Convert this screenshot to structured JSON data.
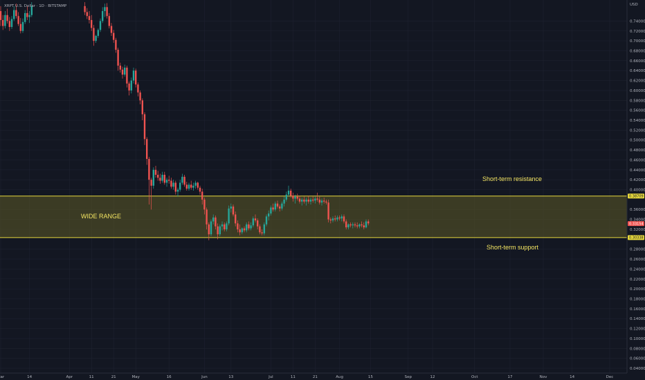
{
  "header": {
    "symbol": "XRPT U.S. Dollar · 1D · BITSTAMP",
    "currency": "USD"
  },
  "colors": {
    "background": "#131722",
    "grid": "#1e2230",
    "up": "#26a69a",
    "down": "#ef5350",
    "range_fill": "#5d5a26",
    "range_border": "#e8d93c",
    "annotation": "#f5e663"
  },
  "chart_data": {
    "type": "candlestick",
    "ylabel": "USD",
    "ylim": [
      0.03,
      0.76
    ],
    "yticks": [
      "0.74000",
      "0.72000",
      "0.70000",
      "0.68000",
      "0.66000",
      "0.64000",
      "0.62000",
      "0.60000",
      "0.58000",
      "0.56000",
      "0.54000",
      "0.52000",
      "0.50000",
      "0.48000",
      "0.46000",
      "0.44000",
      "0.42000",
      "0.40000",
      "0.36000",
      "0.34000",
      "0.32000",
      "0.28000",
      "0.26000",
      "0.24000",
      "0.22000",
      "0.20000",
      "0.18000",
      "0.16000",
      "0.14000",
      "0.12000",
      "0.10000",
      "0.08000",
      "0.06000",
      "0.04000"
    ],
    "xticks": [
      {
        "label": "Mar",
        "day": 0
      },
      {
        "label": "14",
        "day": 13
      },
      {
        "label": "Apr",
        "day": 31
      },
      {
        "label": "11",
        "day": 41
      },
      {
        "label": "21",
        "day": 51
      },
      {
        "label": "May",
        "day": 61
      },
      {
        "label": "16",
        "day": 76
      },
      {
        "label": "Jun",
        "day": 92
      },
      {
        "label": "13",
        "day": 104
      },
      {
        "label": "Jul",
        "day": 122
      },
      {
        "label": "11",
        "day": 132
      },
      {
        "label": "21",
        "day": 142
      },
      {
        "label": "Aug",
        "day": 153
      },
      {
        "label": "15",
        "day": 167
      },
      {
        "label": "Sep",
        "day": 184
      },
      {
        "label": "12",
        "day": 195
      },
      {
        "label": "Oct",
        "day": 214
      },
      {
        "label": "17",
        "day": 230
      },
      {
        "label": "Nov",
        "day": 245
      },
      {
        "label": "14",
        "day": 258
      },
      {
        "label": "Dec",
        "day": 275
      }
    ],
    "price_tags": {
      "resistance": "0.38709",
      "current": "0.33154",
      "support": "0.30338"
    },
    "range": {
      "top": 0.38709,
      "bottom": 0.30338
    },
    "annotations": {
      "range_label": "WIDE RANGE",
      "resistance_label": "Short-term resistance",
      "support_label": "Short-term support"
    },
    "candles": [
      [
        0,
        0.76,
        0.77,
        0.73,
        0.742
      ],
      [
        1,
        0.742,
        0.752,
        0.722,
        0.73
      ],
      [
        2,
        0.73,
        0.76,
        0.725,
        0.752
      ],
      [
        3,
        0.752,
        0.765,
        0.735,
        0.74
      ],
      [
        4,
        0.74,
        0.748,
        0.72,
        0.728
      ],
      [
        5,
        0.728,
        0.75,
        0.724,
        0.744
      ],
      [
        6,
        0.744,
        0.77,
        0.74,
        0.762
      ],
      [
        7,
        0.762,
        0.775,
        0.745,
        0.75
      ],
      [
        8,
        0.75,
        0.758,
        0.73,
        0.734
      ],
      [
        9,
        0.734,
        0.746,
        0.715,
        0.72
      ],
      [
        10,
        0.72,
        0.745,
        0.716,
        0.738
      ],
      [
        11,
        0.738,
        0.762,
        0.734,
        0.756
      ],
      [
        12,
        0.756,
        0.77,
        0.742,
        0.748
      ],
      [
        13,
        0.748,
        0.76,
        0.736,
        0.752
      ],
      [
        14,
        0.752,
        0.778,
        0.748,
        0.77
      ],
      [
        38,
        0.77,
        0.778,
        0.752,
        0.758
      ],
      [
        39,
        0.758,
        0.766,
        0.744,
        0.75
      ],
      [
        40,
        0.75,
        0.76,
        0.735,
        0.742
      ],
      [
        41,
        0.742,
        0.752,
        0.72,
        0.726
      ],
      [
        42,
        0.726,
        0.732,
        0.69,
        0.7
      ],
      [
        43,
        0.7,
        0.712,
        0.696,
        0.71
      ],
      [
        44,
        0.71,
        0.725,
        0.706,
        0.722
      ],
      [
        45,
        0.722,
        0.745,
        0.718,
        0.74
      ],
      [
        46,
        0.74,
        0.768,
        0.736,
        0.76
      ],
      [
        47,
        0.76,
        0.775,
        0.748,
        0.768
      ],
      [
        48,
        0.768,
        0.776,
        0.745,
        0.75
      ],
      [
        49,
        0.75,
        0.756,
        0.725,
        0.73
      ],
      [
        50,
        0.73,
        0.736,
        0.71,
        0.716
      ],
      [
        51,
        0.716,
        0.722,
        0.696,
        0.702
      ],
      [
        52,
        0.702,
        0.706,
        0.676,
        0.682
      ],
      [
        53,
        0.682,
        0.686,
        0.64,
        0.65
      ],
      [
        54,
        0.65,
        0.656,
        0.636,
        0.642
      ],
      [
        55,
        0.642,
        0.648,
        0.624,
        0.632
      ],
      [
        56,
        0.632,
        0.652,
        0.628,
        0.646
      ],
      [
        57,
        0.646,
        0.65,
        0.606,
        0.614
      ],
      [
        58,
        0.614,
        0.618,
        0.59,
        0.6
      ],
      [
        59,
        0.6,
        0.626,
        0.594,
        0.62
      ],
      [
        60,
        0.62,
        0.646,
        0.614,
        0.64
      ],
      [
        61,
        0.64,
        0.644,
        0.606,
        0.612
      ],
      [
        62,
        0.612,
        0.616,
        0.588,
        0.596
      ],
      [
        63,
        0.596,
        0.6,
        0.572,
        0.58
      ],
      [
        64,
        0.58,
        0.584,
        0.54,
        0.552
      ],
      [
        65,
        0.552,
        0.556,
        0.49,
        0.502
      ],
      [
        66,
        0.502,
        0.506,
        0.45,
        0.462
      ],
      [
        67,
        0.462,
        0.466,
        0.37,
        0.42
      ],
      [
        68,
        0.42,
        0.424,
        0.36,
        0.408
      ],
      [
        69,
        0.408,
        0.445,
        0.402,
        0.44
      ],
      [
        70,
        0.44,
        0.448,
        0.424,
        0.43
      ],
      [
        71,
        0.43,
        0.438,
        0.418,
        0.424
      ],
      [
        72,
        0.424,
        0.432,
        0.412,
        0.418
      ],
      [
        73,
        0.418,
        0.436,
        0.414,
        0.43
      ],
      [
        74,
        0.43,
        0.436,
        0.41,
        0.414
      ],
      [
        75,
        0.414,
        0.424,
        0.406,
        0.42
      ],
      [
        76,
        0.42,
        0.428,
        0.412,
        0.418
      ],
      [
        77,
        0.418,
        0.424,
        0.402,
        0.406
      ],
      [
        78,
        0.406,
        0.42,
        0.4,
        0.414
      ],
      [
        79,
        0.414,
        0.418,
        0.39,
        0.396
      ],
      [
        80,
        0.396,
        0.404,
        0.386,
        0.4
      ],
      [
        81,
        0.4,
        0.42,
        0.396,
        0.414
      ],
      [
        82,
        0.414,
        0.432,
        0.41,
        0.426
      ],
      [
        83,
        0.426,
        0.43,
        0.406,
        0.41
      ],
      [
        84,
        0.41,
        0.416,
        0.398,
        0.402
      ],
      [
        85,
        0.402,
        0.414,
        0.398,
        0.41
      ],
      [
        86,
        0.41,
        0.418,
        0.4,
        0.404
      ],
      [
        87,
        0.404,
        0.414,
        0.398,
        0.408
      ],
      [
        88,
        0.408,
        0.418,
        0.402,
        0.414
      ],
      [
        89,
        0.414,
        0.416,
        0.4,
        0.404
      ],
      [
        90,
        0.404,
        0.408,
        0.39,
        0.396
      ],
      [
        91,
        0.396,
        0.402,
        0.37,
        0.38
      ],
      [
        92,
        0.38,
        0.384,
        0.35,
        0.36
      ],
      [
        93,
        0.36,
        0.364,
        0.32,
        0.33
      ],
      [
        94,
        0.33,
        0.334,
        0.298,
        0.31
      ],
      [
        95,
        0.31,
        0.34,
        0.306,
        0.336
      ],
      [
        96,
        0.336,
        0.35,
        0.33,
        0.344
      ],
      [
        97,
        0.344,
        0.348,
        0.32,
        0.326
      ],
      [
        98,
        0.326,
        0.332,
        0.3,
        0.31
      ],
      [
        99,
        0.31,
        0.33,
        0.306,
        0.326
      ],
      [
        100,
        0.326,
        0.336,
        0.318,
        0.33
      ],
      [
        101,
        0.33,
        0.334,
        0.316,
        0.32
      ],
      [
        102,
        0.32,
        0.336,
        0.316,
        0.332
      ],
      [
        103,
        0.332,
        0.368,
        0.328,
        0.362
      ],
      [
        104,
        0.362,
        0.372,
        0.354,
        0.366
      ],
      [
        105,
        0.366,
        0.37,
        0.346,
        0.35
      ],
      [
        106,
        0.35,
        0.356,
        0.326,
        0.332
      ],
      [
        107,
        0.332,
        0.338,
        0.314,
        0.32
      ],
      [
        108,
        0.32,
        0.33,
        0.308,
        0.314
      ],
      [
        109,
        0.314,
        0.324,
        0.31,
        0.322
      ],
      [
        110,
        0.322,
        0.326,
        0.314,
        0.318
      ],
      [
        111,
        0.318,
        0.334,
        0.314,
        0.33
      ],
      [
        112,
        0.33,
        0.336,
        0.318,
        0.322
      ],
      [
        113,
        0.322,
        0.334,
        0.318,
        0.328
      ],
      [
        114,
        0.328,
        0.346,
        0.324,
        0.342
      ],
      [
        115,
        0.342,
        0.35,
        0.334,
        0.338
      ],
      [
        116,
        0.338,
        0.342,
        0.32,
        0.326
      ],
      [
        117,
        0.326,
        0.33,
        0.31,
        0.314
      ],
      [
        118,
        0.314,
        0.32,
        0.308,
        0.312
      ],
      [
        119,
        0.312,
        0.334,
        0.308,
        0.33
      ],
      [
        120,
        0.33,
        0.35,
        0.326,
        0.346
      ],
      [
        121,
        0.346,
        0.358,
        0.338,
        0.352
      ],
      [
        122,
        0.352,
        0.368,
        0.348,
        0.364
      ],
      [
        123,
        0.364,
        0.372,
        0.356,
        0.36
      ],
      [
        124,
        0.36,
        0.376,
        0.356,
        0.372
      ],
      [
        125,
        0.372,
        0.378,
        0.362,
        0.366
      ],
      [
        126,
        0.366,
        0.37,
        0.356,
        0.362
      ],
      [
        127,
        0.362,
        0.376,
        0.358,
        0.372
      ],
      [
        128,
        0.372,
        0.386,
        0.366,
        0.38
      ],
      [
        129,
        0.38,
        0.396,
        0.376,
        0.39
      ],
      [
        130,
        0.39,
        0.408,
        0.386,
        0.398
      ],
      [
        131,
        0.398,
        0.402,
        0.384,
        0.388
      ],
      [
        132,
        0.388,
        0.394,
        0.376,
        0.382
      ],
      [
        133,
        0.382,
        0.39,
        0.372,
        0.386
      ],
      [
        134,
        0.386,
        0.392,
        0.378,
        0.382
      ],
      [
        135,
        0.382,
        0.388,
        0.372,
        0.376
      ],
      [
        136,
        0.376,
        0.384,
        0.368,
        0.38
      ],
      [
        137,
        0.38,
        0.386,
        0.372,
        0.376
      ],
      [
        138,
        0.376,
        0.384,
        0.368,
        0.38
      ],
      [
        139,
        0.38,
        0.388,
        0.372,
        0.376
      ],
      [
        140,
        0.376,
        0.384,
        0.37,
        0.38
      ],
      [
        141,
        0.38,
        0.386,
        0.374,
        0.378
      ],
      [
        142,
        0.378,
        0.386,
        0.372,
        0.382
      ],
      [
        143,
        0.382,
        0.394,
        0.376,
        0.38
      ],
      [
        144,
        0.38,
        0.386,
        0.37,
        0.374
      ],
      [
        145,
        0.374,
        0.382,
        0.368,
        0.378
      ],
      [
        146,
        0.378,
        0.384,
        0.372,
        0.376
      ],
      [
        147,
        0.376,
        0.38,
        0.37,
        0.374
      ],
      [
        148,
        0.374,
        0.38,
        0.334,
        0.34
      ],
      [
        149,
        0.34,
        0.344,
        0.332,
        0.338
      ],
      [
        150,
        0.338,
        0.346,
        0.334,
        0.342
      ],
      [
        151,
        0.342,
        0.348,
        0.336,
        0.34
      ],
      [
        152,
        0.34,
        0.348,
        0.336,
        0.344
      ],
      [
        153,
        0.344,
        0.348,
        0.338,
        0.342
      ],
      [
        154,
        0.342,
        0.35,
        0.336,
        0.346
      ],
      [
        155,
        0.346,
        0.35,
        0.332,
        0.336
      ],
      [
        156,
        0.336,
        0.34,
        0.32,
        0.324
      ],
      [
        157,
        0.324,
        0.332,
        0.32,
        0.33
      ],
      [
        158,
        0.33,
        0.334,
        0.324,
        0.328
      ],
      [
        159,
        0.328,
        0.334,
        0.322,
        0.33
      ],
      [
        160,
        0.33,
        0.334,
        0.324,
        0.328
      ],
      [
        161,
        0.328,
        0.334,
        0.322,
        0.326
      ],
      [
        162,
        0.326,
        0.332,
        0.322,
        0.33
      ],
      [
        163,
        0.33,
        0.336,
        0.324,
        0.328
      ],
      [
        164,
        0.328,
        0.334,
        0.32,
        0.324
      ],
      [
        165,
        0.324,
        0.34,
        0.322,
        0.336
      ],
      [
        166,
        0.336,
        0.34,
        0.328,
        0.332
      ]
    ]
  }
}
